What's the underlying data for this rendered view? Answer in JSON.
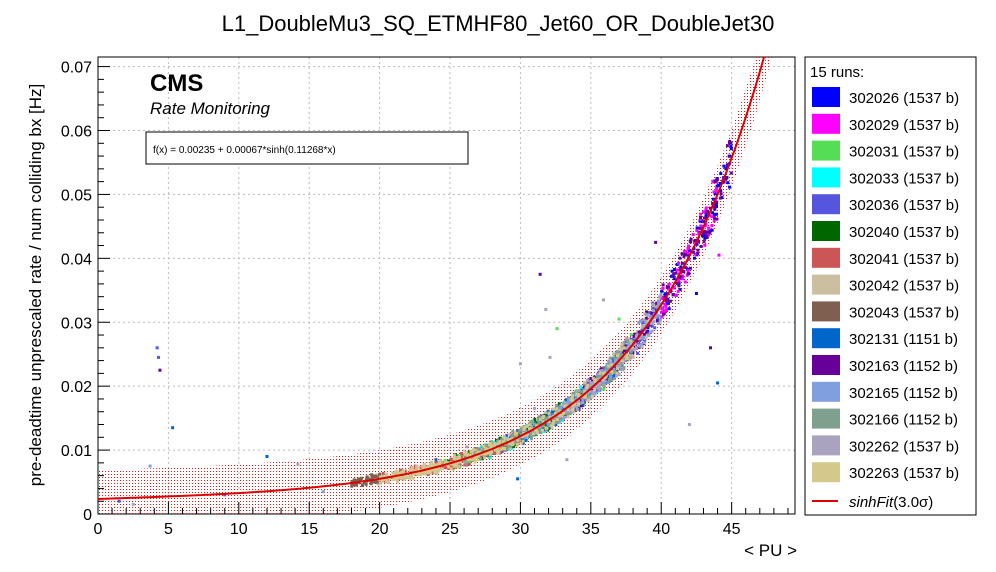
{
  "chart_data": {
    "type": "scatter",
    "title": "L1_DoubleMu3_SQ_ETMHF80_Jet60_OR_DoubleJet30",
    "xlabel": "< PU >",
    "ylabel": "pre-deadtime unprescaled rate / num colliding bx [Hz]",
    "xlim": [
      0,
      49.5
    ],
    "ylim": [
      0,
      0.0715
    ],
    "x_ticks": [
      0,
      5,
      10,
      15,
      20,
      25,
      30,
      35,
      40,
      45
    ],
    "x_tick_labels": [
      "0",
      "5",
      "10",
      "15",
      "20",
      "25",
      "30",
      "35",
      "40",
      "45"
    ],
    "y_ticks": [
      0,
      0.01,
      0.02,
      0.03,
      0.04,
      0.05,
      0.06,
      0.07
    ],
    "y_tick_labels": [
      "0",
      "0.01",
      "0.02",
      "0.03",
      "0.04",
      "0.05",
      "0.06",
      "0.07"
    ],
    "grid": true,
    "cms_label": "CMS",
    "cms_sublabel": "Rate Monitoring",
    "fit_formula_text": "f(x) = 0.00235 + 0.00067*sinh(0.11268*x)",
    "fit": {
      "a": 0.00235,
      "b": 0.00067,
      "c": 0.11268,
      "band_sigma": 3.0,
      "band_halfwidth": 0.0045
    },
    "legend_placement": "right",
    "legend_header": "15 runs:",
    "series": [
      {
        "name": "302026 (1537 b)",
        "color": "#0000ff",
        "x_range": [
          39,
          45
        ]
      },
      {
        "name": "302029 (1537 b)",
        "color": "#ff00ff",
        "x_range": [
          40,
          44
        ]
      },
      {
        "name": "302031 (1537 b)",
        "color": "#55dd55",
        "x_range": [
          24,
          38
        ]
      },
      {
        "name": "302033 (1537 b)",
        "color": "#00ffff",
        "x_range": [
          26,
          36
        ]
      },
      {
        "name": "302036 (1537 b)",
        "color": "#5555dd",
        "x_range": [
          28,
          40
        ]
      },
      {
        "name": "302040 (1537 b)",
        "color": "#006600",
        "x_range": [
          24,
          34
        ]
      },
      {
        "name": "302041 (1537 b)",
        "color": "#cc5555",
        "x_range": [
          20,
          30
        ]
      },
      {
        "name": "302042 (1537 b)",
        "color": "#cbbf9f",
        "x_range": [
          19,
          40
        ]
      },
      {
        "name": "302043 (1537 b)",
        "color": "#7f5f4f",
        "x_range": [
          18,
          20
        ]
      },
      {
        "name": "302131 (1151 b)",
        "color": "#0066cc",
        "x_range": [
          30,
          38
        ]
      },
      {
        "name": "302163 (1152 b)",
        "color": "#660099",
        "x_range": [
          34,
          45
        ]
      },
      {
        "name": "302165 (1152 b)",
        "color": "#7f9fdf",
        "x_range": [
          30,
          40
        ]
      },
      {
        "name": "302166 (1152 b)",
        "color": "#7f9f8f",
        "x_range": [
          26,
          38
        ]
      },
      {
        "name": "302262 (1537 b)",
        "color": "#aaa3bf",
        "x_range": [
          33,
          40
        ]
      },
      {
        "name": "302263 (1537 b)",
        "color": "#d4c98a",
        "x_range": [
          20,
          38
        ]
      }
    ],
    "fit_legend": {
      "name": "sinhFit",
      "suffix": "(3.0σ)",
      "color": "#dd0000"
    },
    "outliers": [
      {
        "x": 4.2,
        "y": 0.026,
        "color": "#5555dd"
      },
      {
        "x": 4.3,
        "y": 0.0245,
        "color": "#5555dd"
      },
      {
        "x": 4.4,
        "y": 0.0225,
        "color": "#660099"
      },
      {
        "x": 5.3,
        "y": 0.0135,
        "color": "#0066cc"
      },
      {
        "x": 3.7,
        "y": 0.0075,
        "color": "#7f9fdf"
      },
      {
        "x": 12.0,
        "y": 0.009,
        "color": "#0066cc"
      },
      {
        "x": 14.2,
        "y": 0.0078,
        "color": "#aaa3bf"
      },
      {
        "x": 31.4,
        "y": 0.0375,
        "color": "#660099"
      },
      {
        "x": 30.0,
        "y": 0.0235,
        "color": "#aaa3bf"
      },
      {
        "x": 31.8,
        "y": 0.032,
        "color": "#aaa3bf"
      },
      {
        "x": 32.6,
        "y": 0.029,
        "color": "#55dd55"
      },
      {
        "x": 32.1,
        "y": 0.0245,
        "color": "#aaa3bf"
      },
      {
        "x": 31.0,
        "y": 0.0165,
        "color": "#aaa3bf"
      },
      {
        "x": 30.4,
        "y": 0.0115,
        "color": "#0066cc"
      },
      {
        "x": 29.8,
        "y": 0.0055,
        "color": "#0066cc"
      },
      {
        "x": 33.3,
        "y": 0.0085,
        "color": "#aaa3bf"
      },
      {
        "x": 35.9,
        "y": 0.0335,
        "color": "#aaa3bf"
      },
      {
        "x": 37.0,
        "y": 0.0305,
        "color": "#55dd55"
      },
      {
        "x": 39.6,
        "y": 0.0425,
        "color": "#660099"
      },
      {
        "x": 42.5,
        "y": 0.0345,
        "color": "#0000ff"
      },
      {
        "x": 43.5,
        "y": 0.026,
        "color": "#660099"
      },
      {
        "x": 44.0,
        "y": 0.0205,
        "color": "#0066cc"
      },
      {
        "x": 42.0,
        "y": 0.014,
        "color": "#aaa3bf"
      },
      {
        "x": 44.1,
        "y": 0.0405,
        "color": "#ff00ff"
      },
      {
        "x": 38.9,
        "y": 0.0295,
        "color": "#aaa3bf"
      },
      {
        "x": 26.2,
        "y": 0.0105,
        "color": "#aaa3bf"
      },
      {
        "x": 24.0,
        "y": 0.0085,
        "color": "#0066cc"
      },
      {
        "x": 1.5,
        "y": 0.002,
        "color": "#5555dd"
      },
      {
        "x": 2.5,
        "y": 0.0015,
        "color": "#aaa3bf"
      },
      {
        "x": 9.0,
        "y": 0.003,
        "color": "#5555dd"
      },
      {
        "x": 16.0,
        "y": 0.0035,
        "color": "#7f9fdf"
      }
    ]
  }
}
